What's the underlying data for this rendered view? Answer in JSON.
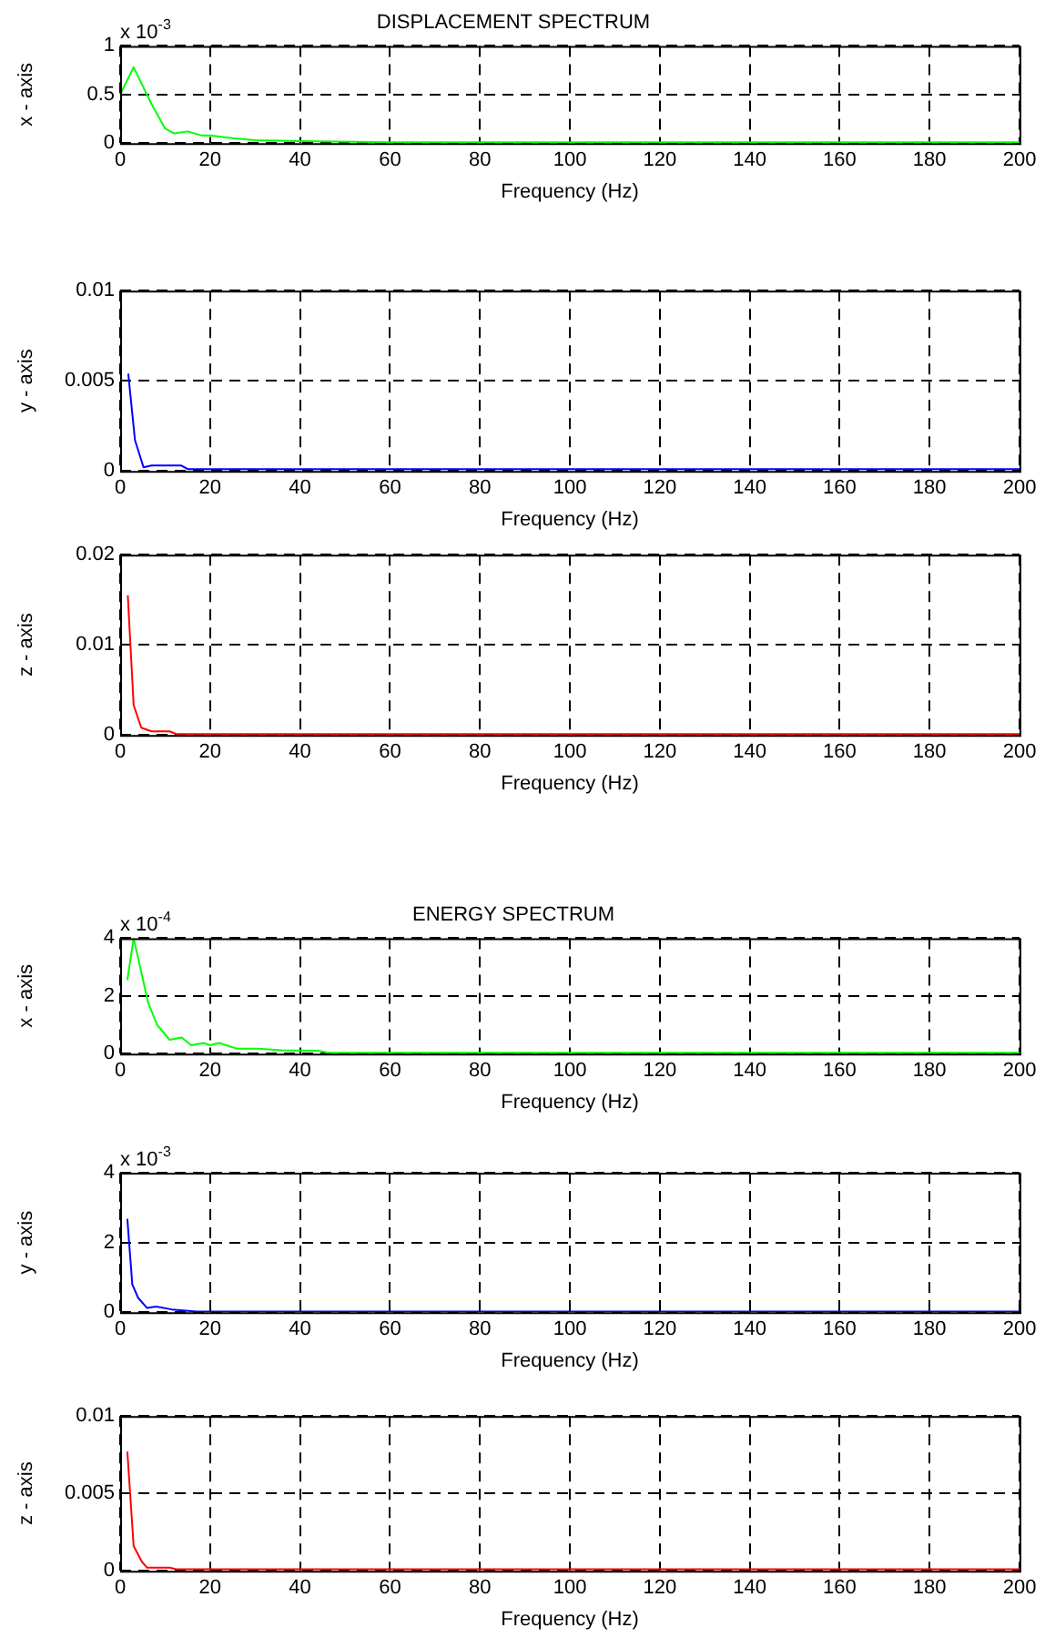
{
  "chart_data": [
    {
      "type": "line",
      "title": "DISPLACEMENT SPECTRUM",
      "xlabel": "Frequency (Hz)",
      "ylabel": "x - axis",
      "annotations": [
        "x 10$^{-3}$"
      ],
      "xlim": [
        0,
        200
      ],
      "xticks": [
        0,
        20,
        40,
        60,
        80,
        100,
        120,
        140,
        160,
        180,
        200
      ],
      "ylim": [
        0,
        1
      ],
      "yticks": [
        0,
        0.5,
        1
      ],
      "grid": true,
      "legend": false,
      "series": [
        {
          "color": "#00ff00",
          "x": [
            0,
            3,
            7,
            10,
            12,
            15,
            18,
            20,
            25,
            30,
            40,
            60,
            100,
            200
          ],
          "values": [
            0.5,
            0.78,
            0.4,
            0.15,
            0.1,
            0.12,
            0.08,
            0.08,
            0.05,
            0.03,
            0.02,
            0.01,
            0.01,
            0.01
          ]
        }
      ]
    },
    {
      "type": "line",
      "xlabel": "Frequency (Hz)",
      "ylabel": "y - axis",
      "xlim": [
        0,
        200
      ],
      "xticks": [
        0,
        20,
        40,
        60,
        80,
        100,
        120,
        140,
        160,
        180,
        200
      ],
      "ylim": [
        0,
        0.01
      ],
      "yticks": [
        0,
        0.005,
        0.01
      ],
      "grid": true,
      "legend": false,
      "series": [
        {
          "color": "#0000ff",
          "x": [
            1.8,
            3.3,
            5.2,
            7,
            13.6,
            15,
            20,
            200
          ],
          "values": [
            0.0054,
            0.0017,
            0.0002,
            0.0003,
            0.0003,
            0.0001,
            0.0001,
            0.0001
          ]
        }
      ]
    },
    {
      "type": "line",
      "xlabel": "Frequency (Hz)",
      "ylabel": "z - axis",
      "xlim": [
        0,
        200
      ],
      "xticks": [
        0,
        20,
        40,
        60,
        80,
        100,
        120,
        140,
        160,
        180,
        200
      ],
      "ylim": [
        0,
        0.02
      ],
      "yticks": [
        0,
        0.01,
        0.02
      ],
      "grid": true,
      "legend": false,
      "series": [
        {
          "color": "#ff0000",
          "x": [
            1.7,
            3,
            4.7,
            7,
            11,
            12.5,
            20,
            200
          ],
          "values": [
            0.0155,
            0.0033,
            0.0008,
            0.0004,
            0.0004,
            0.0001,
            0.0001,
            0.0001
          ]
        }
      ]
    },
    {
      "type": "line",
      "title": "ENERGY SPECTRUM",
      "xlabel": "Frequency (Hz)",
      "ylabel": "x - axis",
      "annotations": [
        "x 10$^{-4}$"
      ],
      "xlim": [
        0,
        200
      ],
      "xticks": [
        0,
        20,
        40,
        60,
        80,
        100,
        120,
        140,
        160,
        180,
        200
      ],
      "ylim": [
        0,
        4
      ],
      "yticks": [
        0,
        2,
        4
      ],
      "grid": true,
      "legend": false,
      "series": [
        {
          "color": "#00ff00",
          "x": [
            1.6,
            3,
            6.2,
            8.2,
            11,
            13.7,
            15.8,
            18.5,
            20,
            22,
            26,
            30.6,
            36,
            44,
            46,
            60,
            200
          ],
          "values": [
            2.55,
            4.0,
            1.78,
            1.0,
            0.48,
            0.56,
            0.29,
            0.37,
            0.29,
            0.37,
            0.17,
            0.17,
            0.12,
            0.1,
            0.04,
            0.03,
            0.03
          ]
        }
      ]
    },
    {
      "type": "line",
      "xlabel": "Frequency (Hz)",
      "ylabel": "y - axis",
      "annotations": [
        "x 10$^{-3}$"
      ],
      "xlim": [
        0,
        200
      ],
      "xticks": [
        0,
        20,
        40,
        60,
        80,
        100,
        120,
        140,
        160,
        180,
        200
      ],
      "ylim": [
        0,
        4
      ],
      "yticks": [
        0,
        2,
        4
      ],
      "grid": true,
      "legend": false,
      "series": [
        {
          "color": "#0000ff",
          "x": [
            1.6,
            2.7,
            4,
            6,
            8,
            11.5,
            17,
            200
          ],
          "values": [
            2.68,
            0.8,
            0.41,
            0.12,
            0.16,
            0.08,
            0.02,
            0.02
          ]
        }
      ]
    },
    {
      "type": "line",
      "xlabel": "Frequency (Hz)",
      "ylabel": "z - axis",
      "xlim": [
        0,
        200
      ],
      "xticks": [
        0,
        20,
        40,
        60,
        80,
        100,
        120,
        140,
        160,
        180,
        200
      ],
      "ylim": [
        0,
        0.01
      ],
      "yticks": [
        0,
        0.005,
        0.01
      ],
      "grid": true,
      "legend": false,
      "series": [
        {
          "color": "#ff0000",
          "x": [
            1.6,
            3,
            4.8,
            6,
            11,
            12.5,
            200
          ],
          "values": [
            0.0077,
            0.0016,
            0.0006,
            0.0002,
            0.0002,
            0.0001,
            0.0001
          ]
        }
      ]
    }
  ]
}
